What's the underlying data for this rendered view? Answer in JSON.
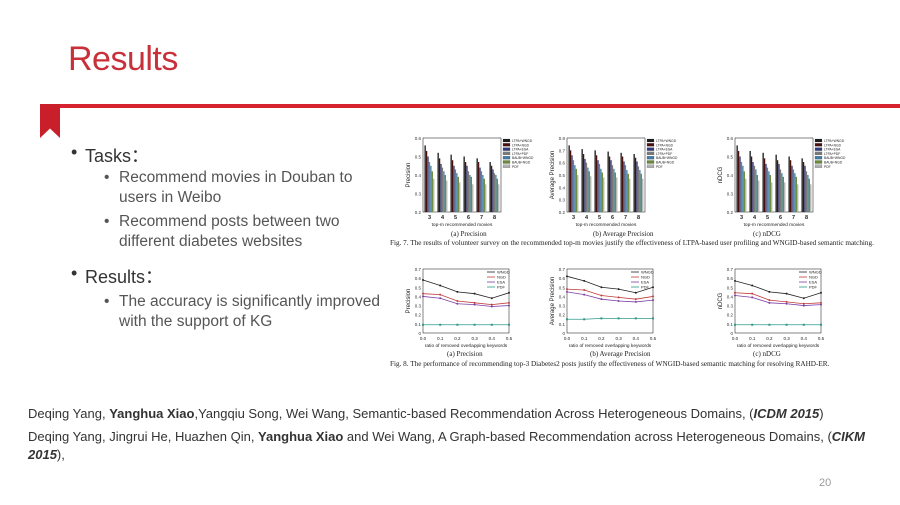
{
  "slide": {
    "title": "Results",
    "page_number": "20",
    "accent_color": "#d7232f"
  },
  "bullets": {
    "tasks_label": "Tasks：",
    "task_items": [
      "Recommend movies in Douban to users in Weibo",
      "Recommend posts between two different diabetes websites"
    ],
    "results_label": "Results：",
    "result_items": [
      "The accuracy is significantly improved with the support of KG"
    ]
  },
  "references": [
    {
      "before": "Deqing Yang, ",
      "bold": "Yanghua Xiao",
      "after": ",Yangqiu Song, Wei Wang, Semantic-based Recommendation Across Heterogeneous Domains, (",
      "venue": "ICDM 2015",
      "end": ")"
    },
    {
      "before": "Deqing Yang, Jingrui He, Huazhen Qin, ",
      "bold": "Yanghua Xiao",
      "after": " and Wei Wang, A Graph-based Recommendation across Heterogeneous Domains, (",
      "venue": "CIKM 2015",
      "end": "),"
    }
  ],
  "figures": {
    "fig7_caption": "Fig. 7.   The results of volunteer survey on the recommended top-m movies justify the effectiveness of LTPA-based user profiling and WNGID-based semantic matching.",
    "fig8_caption": "Fig. 8.   The performance of recommending top-3 Diabetes2 posts justify the effectiveness of WNGID-based semantic matching for resolving RAHD-ER.",
    "fig7_xlabel": "top-m recommended movies",
    "fig8_xlabel": "ratio of removed overlapping keywords",
    "fig7_subcaptions": [
      "(a) Precision",
      "(b) Average Precision",
      "(c) nDCG"
    ],
    "fig8_subcaptions": [
      "(a) Precision",
      "(b) Average Precision",
      "(c) nDCG"
    ]
  },
  "chart_data": [
    {
      "type": "bar",
      "ylabel": "Precision",
      "categories": [
        "3",
        "4",
        "5",
        "6",
        "7",
        "8"
      ],
      "ylim": [
        0.2,
        0.6
      ],
      "yticks": [
        "0.2",
        "0.3",
        "0.4",
        "0.5",
        "0.6"
      ],
      "series": [
        {
          "name": "LTPA+WNGD",
          "values": [
            0.56,
            0.52,
            0.51,
            0.5,
            0.49,
            0.47
          ]
        },
        {
          "name": "LTPA+NGD",
          "values": [
            0.53,
            0.49,
            0.48,
            0.47,
            0.47,
            0.45
          ]
        },
        {
          "name": "LTPA+ESA",
          "values": [
            0.5,
            0.46,
            0.45,
            0.45,
            0.44,
            0.43
          ]
        },
        {
          "name": "LTPA+PDF",
          "values": [
            0.47,
            0.44,
            0.43,
            0.42,
            0.42,
            0.41
          ]
        },
        {
          "name": "BAUB+WNGD",
          "values": [
            0.45,
            0.42,
            0.41,
            0.4,
            0.4,
            0.4
          ]
        },
        {
          "name": "BAUB+NGD",
          "values": [
            0.42,
            0.4,
            0.39,
            0.39,
            0.38,
            0.38
          ]
        },
        {
          "name": "PDF",
          "values": [
            0.38,
            0.37,
            0.36,
            0.35,
            0.35,
            0.35
          ]
        }
      ]
    },
    {
      "type": "bar",
      "ylabel": "Average Precision",
      "categories": [
        "3",
        "4",
        "5",
        "6",
        "7",
        "8"
      ],
      "ylim": [
        0.2,
        0.8
      ],
      "yticks": [
        "0.2",
        "0.3",
        "0.4",
        "0.5",
        "0.6",
        "0.7",
        "0.8"
      ],
      "series": [
        {
          "name": "LTPA+WNGD",
          "values": [
            0.74,
            0.71,
            0.7,
            0.69,
            0.68,
            0.67
          ]
        },
        {
          "name": "LTPA+NGD",
          "values": [
            0.7,
            0.67,
            0.66,
            0.65,
            0.65,
            0.64
          ]
        },
        {
          "name": "LTPA+ESA",
          "values": [
            0.66,
            0.63,
            0.62,
            0.62,
            0.61,
            0.61
          ]
        },
        {
          "name": "LTPA+PDF",
          "values": [
            0.62,
            0.6,
            0.59,
            0.58,
            0.58,
            0.57
          ]
        },
        {
          "name": "BAUB+WNGD",
          "values": [
            0.58,
            0.56,
            0.55,
            0.55,
            0.54,
            0.54
          ]
        },
        {
          "name": "BAUB+NGD",
          "values": [
            0.55,
            0.53,
            0.52,
            0.52,
            0.51,
            0.51
          ]
        },
        {
          "name": "PDF",
          "values": [
            0.5,
            0.49,
            0.48,
            0.48,
            0.47,
            0.47
          ]
        }
      ]
    },
    {
      "type": "bar",
      "ylabel": "nDCG",
      "categories": [
        "3",
        "4",
        "5",
        "6",
        "7",
        "8"
      ],
      "ylim": [
        0.2,
        0.6
      ],
      "yticks": [
        "0.2",
        "0.3",
        "0.4",
        "0.5",
        "0.6"
      ],
      "series": [
        {
          "name": "LTPA+WNGD",
          "values": [
            0.56,
            0.53,
            0.52,
            0.51,
            0.5,
            0.49
          ]
        },
        {
          "name": "LTPA+NGD",
          "values": [
            0.53,
            0.5,
            0.49,
            0.48,
            0.48,
            0.47
          ]
        },
        {
          "name": "LTPA+ESA",
          "values": [
            0.5,
            0.47,
            0.46,
            0.46,
            0.45,
            0.45
          ]
        },
        {
          "name": "LTPA+PDF",
          "values": [
            0.47,
            0.45,
            0.44,
            0.43,
            0.43,
            0.42
          ]
        },
        {
          "name": "BAUB+WNGD",
          "values": [
            0.45,
            0.43,
            0.42,
            0.41,
            0.41,
            0.4
          ]
        },
        {
          "name": "BAUB+NGD",
          "values": [
            0.42,
            0.4,
            0.4,
            0.39,
            0.39,
            0.38
          ]
        },
        {
          "name": "PDF",
          "values": [
            0.38,
            0.37,
            0.36,
            0.36,
            0.35,
            0.35
          ]
        }
      ]
    },
    {
      "type": "line",
      "ylabel": "Precision",
      "x": [
        0,
        0.1,
        0.2,
        0.3,
        0.4,
        0.5
      ],
      "xticks": [
        "0.0",
        "0.1",
        "0.2",
        "0.3",
        "0.4",
        "0.5"
      ],
      "ylim": [
        0,
        0.7
      ],
      "yticks": [
        "0",
        "0.1",
        "0.2",
        "0.3",
        "0.4",
        "0.5",
        "0.6",
        "0.7"
      ],
      "series": [
        {
          "name": "WNGD",
          "values": [
            0.58,
            0.52,
            0.45,
            0.43,
            0.38,
            0.44
          ]
        },
        {
          "name": "NGD",
          "values": [
            0.43,
            0.42,
            0.35,
            0.33,
            0.31,
            0.33
          ]
        },
        {
          "name": "ESA",
          "values": [
            0.4,
            0.38,
            0.32,
            0.31,
            0.29,
            0.3
          ]
        },
        {
          "name": "PDF",
          "values": [
            0.09,
            0.09,
            0.09,
            0.09,
            0.09,
            0.09
          ]
        }
      ]
    },
    {
      "type": "line",
      "ylabel": "Average Precision",
      "x": [
        0,
        0.1,
        0.2,
        0.3,
        0.4,
        0.5
      ],
      "xticks": [
        "0.0",
        "0.1",
        "0.2",
        "0.3",
        "0.4",
        "0.5"
      ],
      "ylim": [
        0,
        0.7
      ],
      "yticks": [
        "0",
        "0.1",
        "0.2",
        "0.3",
        "0.4",
        "0.5",
        "0.6",
        "0.7"
      ],
      "series": [
        {
          "name": "WNGD",
          "values": [
            0.62,
            0.57,
            0.5,
            0.48,
            0.44,
            0.5
          ]
        },
        {
          "name": "NGD",
          "values": [
            0.48,
            0.47,
            0.41,
            0.39,
            0.37,
            0.4
          ]
        },
        {
          "name": "ESA",
          "values": [
            0.45,
            0.42,
            0.37,
            0.35,
            0.34,
            0.36
          ]
        },
        {
          "name": "PDF",
          "values": [
            0.15,
            0.15,
            0.16,
            0.16,
            0.16,
            0.16
          ]
        }
      ]
    },
    {
      "type": "line",
      "ylabel": "nDCG",
      "x": [
        0,
        0.1,
        0.2,
        0.3,
        0.4,
        0.5
      ],
      "xticks": [
        "0.0",
        "0.1",
        "0.2",
        "0.3",
        "0.4",
        "0.5"
      ],
      "ylim": [
        0,
        0.7
      ],
      "yticks": [
        "0",
        "0.1",
        "0.2",
        "0.3",
        "0.4",
        "0.5",
        "0.6",
        "0.7"
      ],
      "series": [
        {
          "name": "WNGD",
          "values": [
            0.57,
            0.52,
            0.45,
            0.43,
            0.38,
            0.44
          ]
        },
        {
          "name": "NGD",
          "values": [
            0.44,
            0.43,
            0.36,
            0.34,
            0.32,
            0.33
          ]
        },
        {
          "name": "ESA",
          "values": [
            0.41,
            0.39,
            0.33,
            0.32,
            0.3,
            0.31
          ]
        },
        {
          "name": "PDF",
          "values": [
            0.09,
            0.09,
            0.09,
            0.09,
            0.09,
            0.09
          ]
        }
      ]
    }
  ]
}
